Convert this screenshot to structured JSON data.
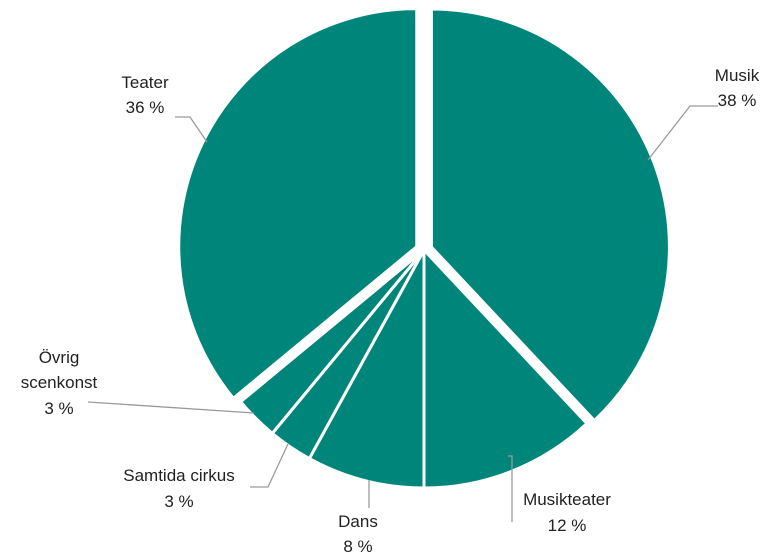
{
  "chart_data": {
    "type": "pie",
    "title": "",
    "colors": {
      "slice": "#00857a",
      "separator": "#ffffff",
      "label": "#222222",
      "leader": "#9a9a9a"
    },
    "slices": [
      {
        "name": "Musik",
        "value": 38,
        "value_label": "38 %"
      },
      {
        "name": "Musikteater",
        "value": 12,
        "value_label": "12 %"
      },
      {
        "name": "Dans",
        "value": 8,
        "value_label": "8 %"
      },
      {
        "name": "Samtida cirkus",
        "value": 3,
        "value_label": "3 %"
      },
      {
        "name": "Övrig scenkonst",
        "value": 3,
        "value_label": "3 %"
      },
      {
        "name": "Teater",
        "value": 36,
        "value_label": "36 %"
      }
    ]
  }
}
